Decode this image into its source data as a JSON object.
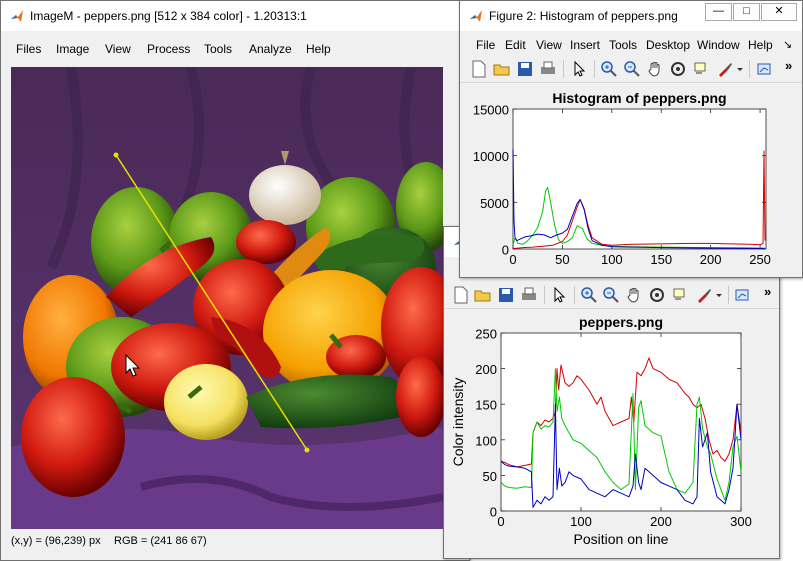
{
  "imagem": {
    "title": "ImageM - peppers.png [512 x 384 color] - 1.20313:1",
    "menu": [
      "Files",
      "Image",
      "View",
      "Process",
      "Tools",
      "Analyze",
      "Help"
    ],
    "status_xy": "(x,y) = (96,239) px",
    "status_rgb": "RGB = (241 86 67)"
  },
  "fig2": {
    "title": "Figure 2: Histogram of peppers.png",
    "menu": [
      "File",
      "Edit",
      "View",
      "Insert",
      "Tools",
      "Desktop",
      "Window",
      "Help"
    ],
    "more_glyph": "»",
    "dock_glyph": "↘"
  },
  "fig3": {
    "more_glyph": "»"
  },
  "colors": {
    "red": "#d40000",
    "green": "#00c800",
    "blue": "#0000c0",
    "profile_line": "#e8e000"
  },
  "chart_data": [
    {
      "type": "line",
      "title": "Histogram of peppers.png",
      "xlabel": "",
      "ylabel": "",
      "xlim": [
        0,
        256
      ],
      "ylim": [
        0,
        15000
      ],
      "xticks": [
        0,
        50,
        100,
        150,
        200,
        250
      ],
      "yticks": [
        0,
        5000,
        10000,
        15000
      ],
      "grid": false,
      "series": [
        {
          "color": "red",
          "x": [
            0,
            5,
            10,
            20,
            30,
            40,
            50,
            55,
            60,
            65,
            68,
            72,
            76,
            80,
            90,
            100,
            120,
            150,
            180,
            200,
            220,
            240,
            250,
            253,
            254,
            255
          ],
          "y": [
            50,
            100,
            150,
            200,
            300,
            400,
            800,
            1500,
            3000,
            4500,
            5300,
            4300,
            2500,
            1200,
            500,
            400,
            500,
            550,
            600,
            600,
            550,
            500,
            450,
            600,
            10500,
            900
          ]
        },
        {
          "color": "green",
          "x": [
            0,
            2,
            5,
            10,
            15,
            20,
            25,
            30,
            33,
            35,
            38,
            42,
            46,
            50,
            55,
            60,
            65,
            70,
            75,
            80,
            90,
            100,
            120,
            150,
            200,
            240,
            255
          ],
          "y": [
            400,
            1200,
            600,
            500,
            900,
            1500,
            2300,
            4000,
            6200,
            6600,
            5000,
            2600,
            1000,
            600,
            800,
            1200,
            2500,
            2200,
            1100,
            600,
            400,
            300,
            250,
            200,
            150,
            120,
            100
          ]
        },
        {
          "color": "blue",
          "x": [
            0,
            1,
            2,
            4,
            8,
            12,
            18,
            25,
            32,
            38,
            44,
            50,
            55,
            60,
            65,
            68,
            72,
            76,
            80,
            90,
            100,
            120,
            150,
            200,
            250,
            255
          ],
          "y": [
            10700,
            3000,
            1200,
            900,
            1100,
            1300,
            1400,
            1600,
            1500,
            1200,
            1500,
            1700,
            2100,
            3500,
            4900,
            5300,
            4200,
            2200,
            900,
            400,
            250,
            200,
            150,
            100,
            50,
            30
          ]
        }
      ]
    },
    {
      "type": "line",
      "title": "peppers.png",
      "xlabel": "Position on line",
      "ylabel": "Color intensity",
      "xlim": [
        0,
        300
      ],
      "ylim": [
        0,
        250
      ],
      "xticks": [
        0,
        100,
        200,
        300
      ],
      "yticks": [
        0,
        50,
        100,
        150,
        200,
        250
      ],
      "grid": false,
      "series": [
        {
          "color": "red",
          "x": [
            0,
            5,
            10,
            20,
            30,
            38,
            40,
            45,
            50,
            55,
            60,
            65,
            68,
            70,
            72,
            75,
            80,
            85,
            90,
            95,
            100,
            110,
            120,
            125,
            130,
            140,
            150,
            160,
            163,
            166,
            170,
            175,
            180,
            185,
            190,
            200,
            210,
            220,
            230,
            235,
            240,
            245,
            250,
            255,
            260,
            265,
            270,
            275,
            280,
            285,
            290,
            295,
            300
          ],
          "y": [
            70,
            68,
            65,
            62,
            64,
            66,
            110,
            125,
            120,
            128,
            125,
            130,
            140,
            200,
            170,
            205,
            180,
            175,
            180,
            190,
            185,
            170,
            150,
            160,
            140,
            120,
            125,
            130,
            160,
            125,
            195,
            190,
            200,
            215,
            200,
            195,
            185,
            180,
            165,
            160,
            150,
            145,
            150,
            130,
            100,
            80,
            85,
            75,
            70,
            80,
            100,
            150,
            110
          ]
        },
        {
          "color": "green",
          "x": [
            0,
            5,
            10,
            20,
            30,
            38,
            40,
            45,
            50,
            55,
            60,
            65,
            68,
            70,
            73,
            76,
            80,
            85,
            90,
            100,
            110,
            120,
            130,
            140,
            150,
            160,
            165,
            168,
            172,
            175,
            180,
            190,
            200,
            210,
            220,
            230,
            240,
            245,
            248,
            252,
            258,
            262,
            270,
            280,
            285,
            290,
            295,
            300
          ],
          "y": [
            40,
            35,
            33,
            32,
            34,
            33,
            110,
            125,
            115,
            120,
            118,
            125,
            200,
            140,
            160,
            130,
            120,
            110,
            100,
            95,
            85,
            75,
            55,
            40,
            30,
            38,
            165,
            30,
            145,
            155,
            120,
            110,
            105,
            55,
            30,
            25,
            40,
            150,
            160,
            115,
            90,
            80,
            45,
            15,
            40,
            90,
            105,
            55
          ]
        },
        {
          "color": "blue",
          "x": [
            0,
            5,
            10,
            20,
            30,
            38,
            40,
            45,
            50,
            55,
            60,
            65,
            68,
            70,
            73,
            76,
            80,
            85,
            90,
            100,
            110,
            120,
            130,
            140,
            150,
            160,
            165,
            168,
            172,
            175,
            180,
            190,
            200,
            210,
            220,
            230,
            240,
            245,
            248,
            252,
            258,
            262,
            270,
            280,
            285,
            290,
            295,
            300
          ],
          "y": [
            70,
            65,
            63,
            62,
            60,
            55,
            5,
            15,
            10,
            20,
            15,
            20,
            150,
            30,
            60,
            35,
            40,
            55,
            50,
            45,
            30,
            25,
            20,
            30,
            25,
            20,
            35,
            80,
            40,
            30,
            60,
            50,
            40,
            35,
            30,
            15,
            10,
            20,
            130,
            90,
            110,
            55,
            20,
            10,
            30,
            60,
            150,
            100
          ]
        }
      ]
    }
  ]
}
